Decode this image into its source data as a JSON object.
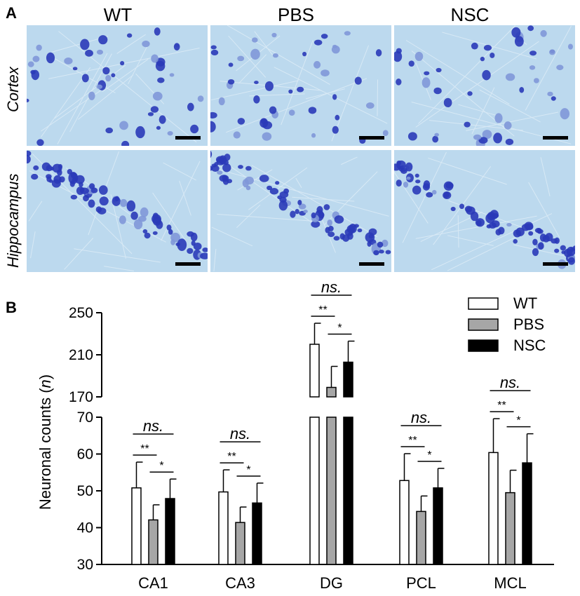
{
  "panel_a": {
    "letter": "A",
    "columns": [
      "WT",
      "PBS",
      "NSC"
    ],
    "rows": [
      "Cortex",
      "Hippocampus"
    ]
  },
  "panel_b": {
    "letter": "B"
  },
  "colors": {
    "tissue_bg": "#bcd9ee",
    "cell_dark": "#2a3ab8",
    "cell_light": "#7f97d8",
    "WT": "#ffffff",
    "PBS": "#a6a6a6",
    "NSC": "#000000"
  },
  "chart_data": {
    "type": "bar",
    "title": "",
    "xlabel": "",
    "ylabel": "Neuronal counts (n)",
    "ylabel_parts": [
      "Neuronal counts (",
      "n",
      ")"
    ],
    "y_break": {
      "lower": [
        30,
        70
      ],
      "upper": [
        170,
        250
      ]
    },
    "yticks_lower": [
      "30",
      "40",
      "50",
      "60",
      "70"
    ],
    "yticks_upper": [
      "170",
      "210",
      "250"
    ],
    "categories": [
      "CA1",
      "CA3",
      "DG",
      "PCL",
      "MCL"
    ],
    "series": [
      {
        "name": "WT",
        "values": [
          50.8,
          49.7,
          220,
          52.8,
          60.4
        ],
        "errors": [
          7.0,
          6.0,
          20,
          7.3,
          9.2
        ]
      },
      {
        "name": "PBS",
        "values": [
          42.1,
          41.4,
          179,
          44.4,
          49.5
        ],
        "errors": [
          4.1,
          4.2,
          20,
          4.2,
          6.1
        ]
      },
      {
        "name": "NSC",
        "values": [
          47.9,
          46.7,
          203,
          50.8,
          57.6
        ],
        "errors": [
          5.3,
          5.4,
          20,
          5.3,
          7.9
        ]
      }
    ],
    "significance": [
      "ns.",
      "**",
      "*"
    ],
    "legend": {
      "position": "top-right",
      "entries": [
        "WT",
        "PBS",
        "NSC"
      ]
    }
  }
}
